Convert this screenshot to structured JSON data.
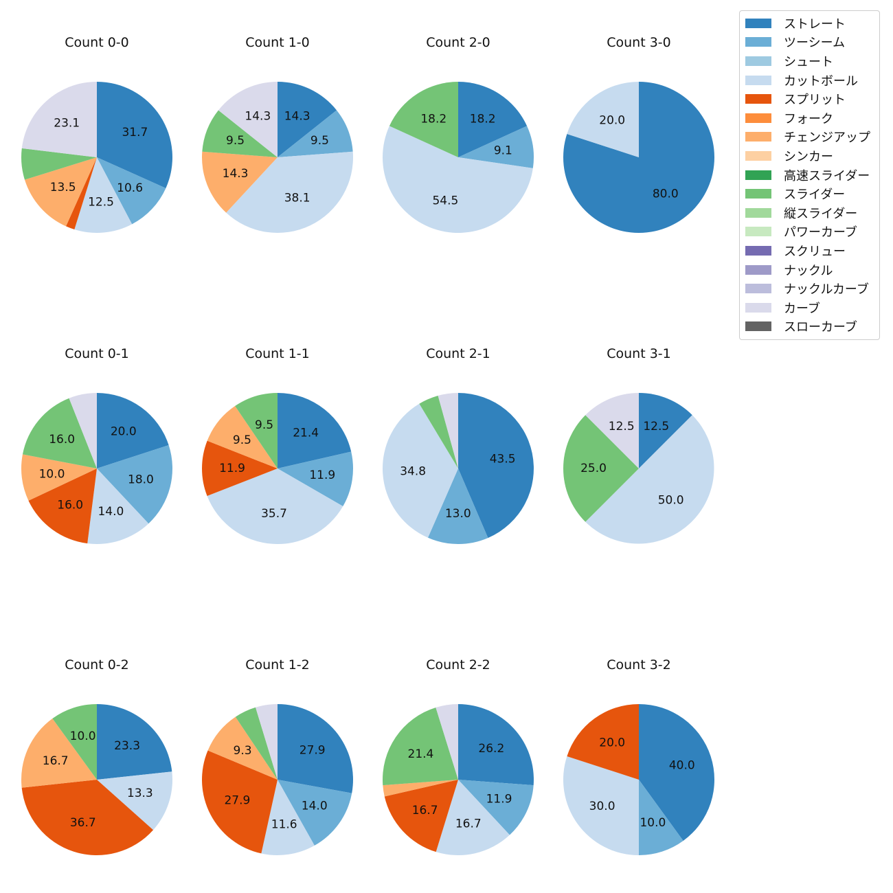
{
  "chart_data": {
    "type": "pie",
    "legend_position": "top-right",
    "legend": [
      {
        "name": "ストレート",
        "color": "#3182bd"
      },
      {
        "name": "ツーシーム",
        "color": "#6baed6"
      },
      {
        "name": "シュート",
        "color": "#9ecae1"
      },
      {
        "name": "カットボール",
        "color": "#c6dbef"
      },
      {
        "name": "スプリット",
        "color": "#e6550d"
      },
      {
        "name": "フォーク",
        "color": "#fd8d3c"
      },
      {
        "name": "チェンジアップ",
        "color": "#fdae6b"
      },
      {
        "name": "シンカー",
        "color": "#fdd0a2"
      },
      {
        "name": "高速スライダー",
        "color": "#31a354"
      },
      {
        "name": "スライダー",
        "color": "#74c476"
      },
      {
        "name": "縦スライダー",
        "color": "#a1d99b"
      },
      {
        "name": "パワーカーブ",
        "color": "#c7e9c0"
      },
      {
        "name": "スクリュー",
        "color": "#756bb1"
      },
      {
        "name": "ナックル",
        "color": "#9e9ac8"
      },
      {
        "name": "ナックルカーブ",
        "color": "#bcbddc"
      },
      {
        "name": "カーブ",
        "color": "#dadaeb"
      },
      {
        "name": "スローカーブ",
        "color": "#636363"
      }
    ],
    "panels": [
      {
        "title": "Count 0-0",
        "slices": [
          {
            "pitch": "ストレート",
            "value": 31.7,
            "label": "31.7"
          },
          {
            "pitch": "ツーシーム",
            "value": 10.6,
            "label": "10.6"
          },
          {
            "pitch": "カットボール",
            "value": 12.5,
            "label": "12.5"
          },
          {
            "pitch": "スプリット",
            "value": 1.9,
            "label": ""
          },
          {
            "pitch": "チェンジアップ",
            "value": 13.5,
            "label": "13.5"
          },
          {
            "pitch": "スライダー",
            "value": 6.7,
            "label": ""
          },
          {
            "pitch": "カーブ",
            "value": 23.1,
            "label": "23.1"
          }
        ]
      },
      {
        "title": "Count 1-0",
        "slices": [
          {
            "pitch": "ストレート",
            "value": 14.3,
            "label": "14.3"
          },
          {
            "pitch": "ツーシーム",
            "value": 9.5,
            "label": "9.5"
          },
          {
            "pitch": "カットボール",
            "value": 38.1,
            "label": "38.1"
          },
          {
            "pitch": "チェンジアップ",
            "value": 14.3,
            "label": "14.3"
          },
          {
            "pitch": "スライダー",
            "value": 9.5,
            "label": "9.5"
          },
          {
            "pitch": "カーブ",
            "value": 14.3,
            "label": "14.3"
          }
        ]
      },
      {
        "title": "Count 2-0",
        "slices": [
          {
            "pitch": "ストレート",
            "value": 18.2,
            "label": "18.2"
          },
          {
            "pitch": "ツーシーム",
            "value": 9.1,
            "label": "9.1"
          },
          {
            "pitch": "カットボール",
            "value": 54.5,
            "label": "54.5"
          },
          {
            "pitch": "スライダー",
            "value": 18.2,
            "label": "18.2"
          }
        ]
      },
      {
        "title": "Count 3-0",
        "slices": [
          {
            "pitch": "ストレート",
            "value": 80.0,
            "label": "80.0"
          },
          {
            "pitch": "カットボール",
            "value": 20.0,
            "label": "20.0"
          }
        ]
      },
      {
        "title": "Count 0-1",
        "slices": [
          {
            "pitch": "ストレート",
            "value": 20.0,
            "label": "20.0"
          },
          {
            "pitch": "ツーシーム",
            "value": 18.0,
            "label": "18.0"
          },
          {
            "pitch": "カットボール",
            "value": 14.0,
            "label": "14.0"
          },
          {
            "pitch": "スプリット",
            "value": 16.0,
            "label": "16.0"
          },
          {
            "pitch": "チェンジアップ",
            "value": 10.0,
            "label": "10.0"
          },
          {
            "pitch": "スライダー",
            "value": 16.0,
            "label": "16.0"
          },
          {
            "pitch": "カーブ",
            "value": 6.0,
            "label": ""
          }
        ]
      },
      {
        "title": "Count 1-1",
        "slices": [
          {
            "pitch": "ストレート",
            "value": 21.4,
            "label": "21.4"
          },
          {
            "pitch": "ツーシーム",
            "value": 11.9,
            "label": "11.9"
          },
          {
            "pitch": "カットボール",
            "value": 35.7,
            "label": "35.7"
          },
          {
            "pitch": "スプリット",
            "value": 11.9,
            "label": "11.9"
          },
          {
            "pitch": "チェンジアップ",
            "value": 9.5,
            "label": "9.5"
          },
          {
            "pitch": "スライダー",
            "value": 9.5,
            "label": "9.5"
          }
        ]
      },
      {
        "title": "Count 2-1",
        "slices": [
          {
            "pitch": "ストレート",
            "value": 43.5,
            "label": "43.5"
          },
          {
            "pitch": "ツーシーム",
            "value": 13.0,
            "label": "13.0"
          },
          {
            "pitch": "カットボール",
            "value": 34.8,
            "label": "34.8"
          },
          {
            "pitch": "スライダー",
            "value": 4.3,
            "label": ""
          },
          {
            "pitch": "カーブ",
            "value": 4.3,
            "label": ""
          }
        ]
      },
      {
        "title": "Count 3-1",
        "slices": [
          {
            "pitch": "ストレート",
            "value": 12.5,
            "label": "12.5"
          },
          {
            "pitch": "カットボール",
            "value": 50.0,
            "label": "50.0"
          },
          {
            "pitch": "スライダー",
            "value": 25.0,
            "label": "25.0"
          },
          {
            "pitch": "カーブ",
            "value": 12.5,
            "label": "12.5"
          }
        ]
      },
      {
        "title": "Count 0-2",
        "slices": [
          {
            "pitch": "ストレート",
            "value": 23.3,
            "label": "23.3"
          },
          {
            "pitch": "カットボール",
            "value": 13.3,
            "label": "13.3"
          },
          {
            "pitch": "スプリット",
            "value": 36.7,
            "label": "36.7"
          },
          {
            "pitch": "チェンジアップ",
            "value": 16.7,
            "label": "16.7"
          },
          {
            "pitch": "スライダー",
            "value": 10.0,
            "label": "10.0"
          }
        ]
      },
      {
        "title": "Count 1-2",
        "slices": [
          {
            "pitch": "ストレート",
            "value": 27.9,
            "label": "27.9"
          },
          {
            "pitch": "ツーシーム",
            "value": 14.0,
            "label": "14.0"
          },
          {
            "pitch": "カットボール",
            "value": 11.6,
            "label": "11.6"
          },
          {
            "pitch": "スプリット",
            "value": 27.9,
            "label": "27.9"
          },
          {
            "pitch": "チェンジアップ",
            "value": 9.3,
            "label": "9.3"
          },
          {
            "pitch": "スライダー",
            "value": 4.7,
            "label": ""
          },
          {
            "pitch": "カーブ",
            "value": 4.7,
            "label": ""
          }
        ]
      },
      {
        "title": "Count 2-2",
        "slices": [
          {
            "pitch": "ストレート",
            "value": 26.2,
            "label": "26.2"
          },
          {
            "pitch": "ツーシーム",
            "value": 11.9,
            "label": "11.9"
          },
          {
            "pitch": "カットボール",
            "value": 16.7,
            "label": "16.7"
          },
          {
            "pitch": "スプリット",
            "value": 16.7,
            "label": "16.7"
          },
          {
            "pitch": "チェンジアップ",
            "value": 2.4,
            "label": ""
          },
          {
            "pitch": "スライダー",
            "value": 21.4,
            "label": "21.4"
          },
          {
            "pitch": "カーブ",
            "value": 4.8,
            "label": ""
          }
        ]
      },
      {
        "title": "Count 3-2",
        "slices": [
          {
            "pitch": "ストレート",
            "value": 40.0,
            "label": "40.0"
          },
          {
            "pitch": "ツーシーム",
            "value": 10.0,
            "label": "10.0"
          },
          {
            "pitch": "カットボール",
            "value": 30.0,
            "label": "30.0"
          },
          {
            "pitch": "スプリット",
            "value": 20.0,
            "label": "20.0"
          }
        ]
      }
    ]
  }
}
